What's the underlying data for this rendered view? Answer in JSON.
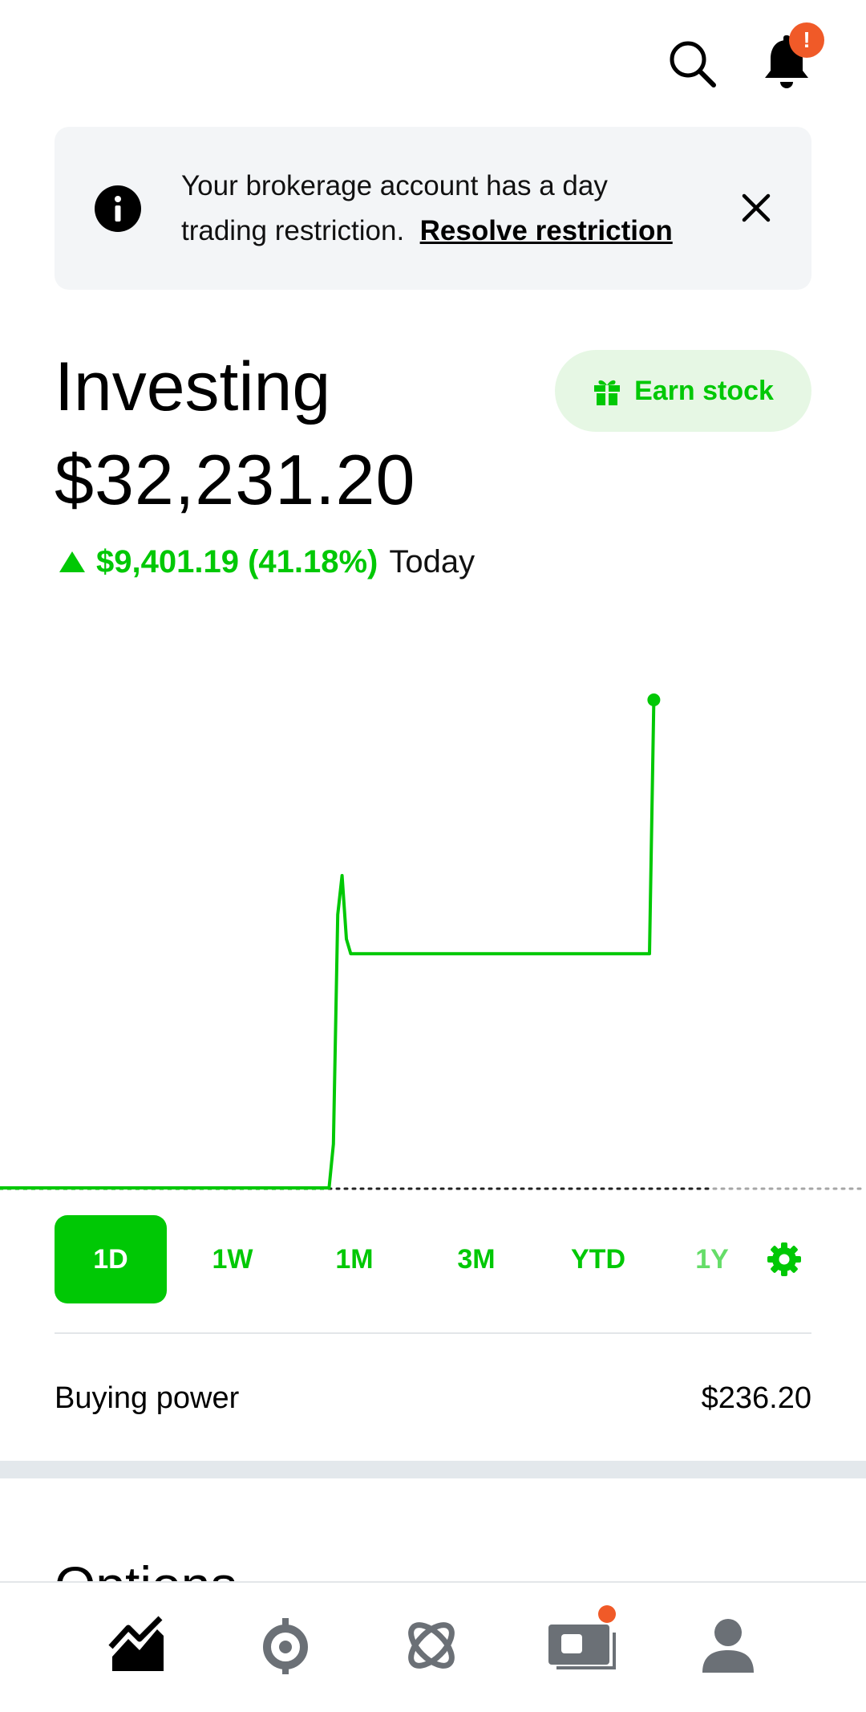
{
  "header": {
    "notification_badge": "!"
  },
  "banner": {
    "message": "Your brokerage account has a day trading restriction.",
    "link_label": "Resolve restriction"
  },
  "portfolio": {
    "title": "Investing",
    "earn_stock_label": "Earn stock",
    "balance": "$32,231.20",
    "change": "$9,401.19 (41.18%)",
    "change_period": "Today"
  },
  "chart_data": {
    "type": "line",
    "series_color": "#00c805",
    "baseline_style": "dotted",
    "x": [
      0,
      0.38,
      0.385,
      0.39,
      0.395,
      0.4,
      0.405,
      0.75,
      0.755
    ],
    "values": [
      0,
      0,
      0.09,
      0.56,
      0.64,
      0.51,
      0.48,
      0.48,
      1
    ],
    "ylim": [
      0,
      1
    ],
    "grid": false,
    "legend": "none"
  },
  "range_tabs": [
    {
      "label": "1D",
      "active": true
    },
    {
      "label": "1W",
      "active": false
    },
    {
      "label": "1M",
      "active": false
    },
    {
      "label": "3M",
      "active": false
    },
    {
      "label": "YTD",
      "active": false
    },
    {
      "label": "1Y",
      "active": false
    }
  ],
  "buying_power": {
    "label": "Buying power",
    "value": "$236.20"
  },
  "options": {
    "heading": "Options"
  },
  "bottom_nav": {
    "items": [
      {
        "icon": "investing-chart-icon",
        "active": true
      },
      {
        "icon": "crypto-icon",
        "active": false
      },
      {
        "icon": "explore-icon",
        "active": false
      },
      {
        "icon": "cash-card-icon",
        "active": false,
        "badge": true
      },
      {
        "icon": "account-person-icon",
        "active": false
      }
    ]
  },
  "colors": {
    "accent": "#00c805",
    "alert": "#f05a28",
    "banner_bg": "#f3f5f7",
    "earn_bg": "#e6f7e4"
  }
}
